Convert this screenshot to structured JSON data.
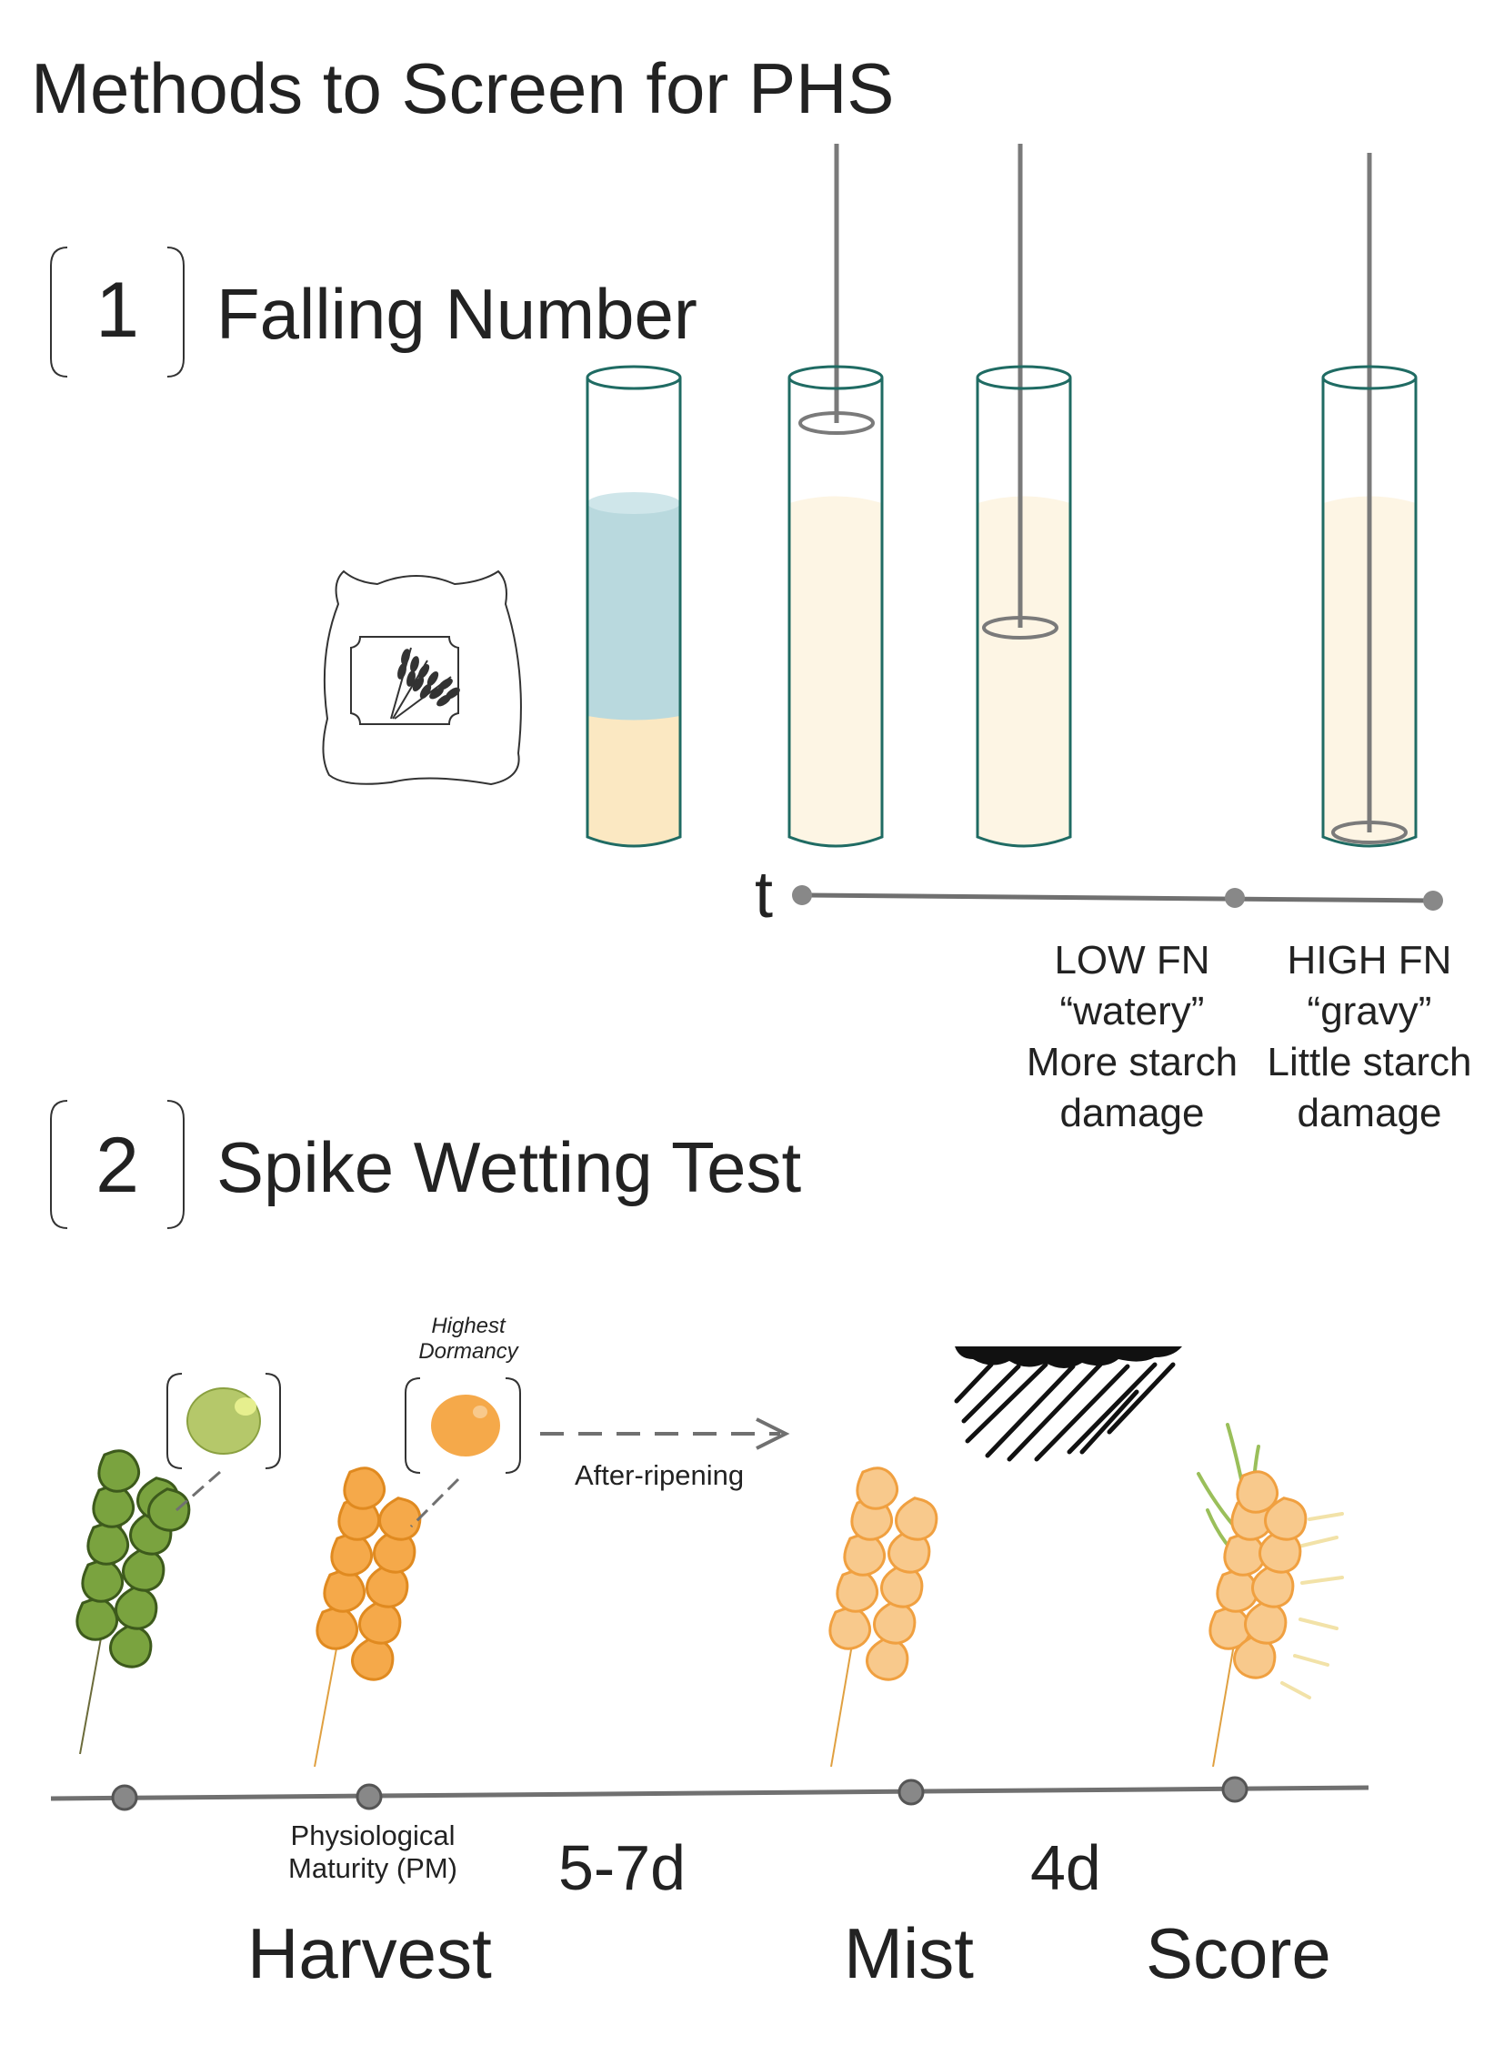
{
  "title": "Methods to Screen for PHS",
  "section1": {
    "number": "1",
    "title": "Falling Number"
  },
  "section2": {
    "number": "2",
    "title": "Spike Wetting Test"
  },
  "falling_number": {
    "time_axis_label": "t",
    "low": {
      "lines": [
        "LOW FN",
        "“watery”",
        "More starch",
        "damage"
      ]
    },
    "high": {
      "lines": [
        "HIGH FN",
        "“gravy”",
        "Little starch",
        "damage"
      ]
    }
  },
  "spike_wetting": {
    "dormancy_label": [
      "Highest",
      "Dormancy"
    ],
    "after_ripening_label": "After-ripening",
    "pm_label": [
      "Physiological",
      "Maturity (PM)"
    ],
    "durations": [
      "5-7d",
      "4d"
    ],
    "stages": [
      "Harvest",
      "Mist",
      "Score"
    ]
  },
  "colors": {
    "tube_outline": "#1f6b63",
    "water": "#b9d9de",
    "flour": "#fbe8c2",
    "slurry": "#fdf5e4",
    "stirrer": "#7a7a7a",
    "green_spike": "#7aa33f",
    "green_outline": "#3d5a1c",
    "orange_spike": "#f5a94a",
    "orange_light": "#f8c98c",
    "timeline": "#707070"
  },
  "icons": [
    "flour-bag-icon",
    "wheat-icon",
    "rain-cloud-icon"
  ]
}
